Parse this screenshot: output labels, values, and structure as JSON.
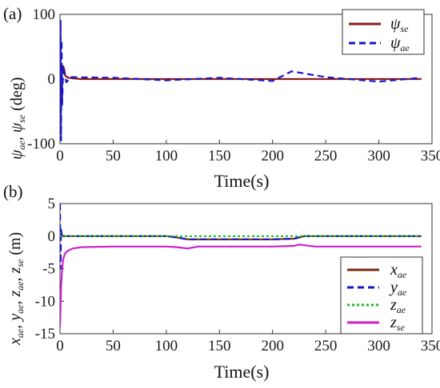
{
  "chart_data": [
    {
      "type": "line",
      "panel_label": "(a)",
      "xlabel": "Time(s)",
      "ylabel": "ψae, ψse (deg)",
      "xlim": [
        0,
        350
      ],
      "ylim": [
        -100,
        100
      ],
      "xticks": [
        "0",
        "50",
        "100",
        "150",
        "200",
        "250",
        "300",
        "350"
      ],
      "yticks": [
        "100",
        "0",
        "-100"
      ],
      "legend_position": "top-right",
      "series": [
        {
          "name": "ψse",
          "color": "#8b1a1a",
          "style": "solid",
          "x": [
            0,
            0.5,
            1,
            2,
            3,
            4,
            5,
            8,
            12,
            20,
            50,
            100,
            150,
            200,
            250,
            300,
            340
          ],
          "y": [
            0,
            -30,
            10,
            18,
            20,
            15,
            5,
            2,
            1,
            0,
            0,
            0,
            0,
            0,
            0,
            0,
            0
          ]
        },
        {
          "name": "ψae",
          "color": "#1515cc",
          "style": "dashed",
          "x": [
            0,
            0.5,
            1,
            1.5,
            2,
            3,
            4,
            6,
            10,
            50,
            100,
            150,
            200,
            218,
            250,
            300,
            340
          ],
          "y": [
            0,
            90,
            -95,
            60,
            -40,
            20,
            10,
            -5,
            3,
            2,
            -2,
            2,
            -3,
            12,
            3,
            -4,
            2
          ]
        }
      ]
    },
    {
      "type": "line",
      "panel_label": "(b)",
      "xlabel": "Time(s)",
      "ylabel": "xae, yae, zae, zse (m)",
      "xlim": [
        0,
        350
      ],
      "ylim": [
        -15,
        5
      ],
      "xticks": [
        "0",
        "50",
        "100",
        "150",
        "200",
        "250",
        "300",
        "350"
      ],
      "yticks": [
        "5",
        "0",
        "-5",
        "-10",
        "-15"
      ],
      "legend_position": "bottom-right",
      "series": [
        {
          "name": "xae",
          "color": "#7a2a10",
          "style": "solid",
          "x": [
            0,
            2,
            5,
            100,
            110,
            120,
            150,
            200,
            220,
            230,
            240,
            340
          ],
          "y": [
            0,
            0,
            0,
            0,
            -0.2,
            -0.5,
            -0.5,
            -0.5,
            -0.4,
            0,
            0,
            0
          ]
        },
        {
          "name": "yae",
          "color": "#1515cc",
          "style": "dashed",
          "x": [
            0,
            0.5,
            1,
            2,
            5,
            100,
            110,
            120,
            150,
            200,
            220,
            230,
            240,
            340
          ],
          "y": [
            5,
            -5,
            1,
            0,
            0,
            0,
            -0.2,
            -0.5,
            -0.5,
            -0.5,
            -0.4,
            0,
            0,
            0
          ]
        },
        {
          "name": "zae",
          "color": "#22bb22",
          "style": "dotted",
          "x": [
            0,
            2,
            50,
            100,
            150,
            200,
            250,
            300,
            340
          ],
          "y": [
            0,
            0,
            0,
            0,
            0,
            0,
            0,
            0,
            0
          ]
        },
        {
          "name": "zse",
          "color": "#cc22cc",
          "style": "solid",
          "x": [
            0,
            1,
            2,
            3,
            5,
            8,
            12,
            20,
            50,
            100,
            110,
            120,
            130,
            150,
            200,
            220,
            225,
            230,
            240,
            250,
            300,
            340
          ],
          "y": [
            -14,
            -8,
            -5,
            -3.5,
            -2.6,
            -2.2,
            -1.9,
            -1.7,
            -1.6,
            -1.6,
            -1.7,
            -1.9,
            -1.6,
            -1.6,
            -1.6,
            -1.5,
            -1.3,
            -1.4,
            -1.6,
            -1.6,
            -1.6,
            -1.6
          ]
        }
      ]
    }
  ]
}
